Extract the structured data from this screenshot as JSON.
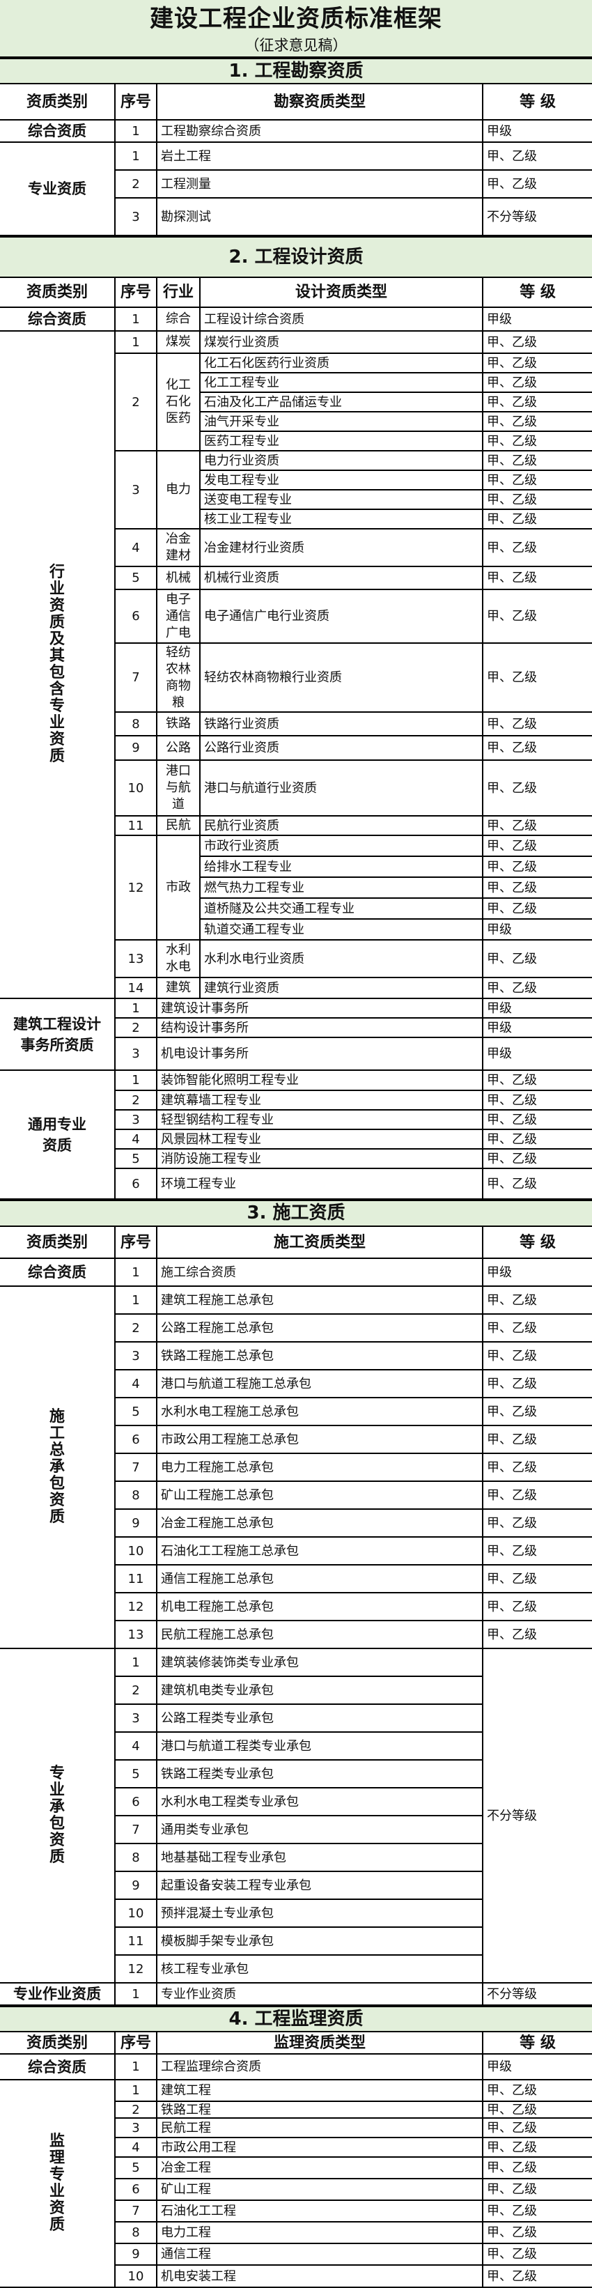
{
  "document": {
    "title": "建设工程企业资质标准框架",
    "subtitle": "（征求意见稿）"
  },
  "colors": {
    "header_bg": "#e2efda",
    "border": "#000000"
  },
  "sections": [
    {
      "title": "1. 工程勘察资质",
      "headers": [
        "资质类别",
        "序号",
        "勘察资质类型",
        "等 级"
      ],
      "groups": [
        {
          "category": "综合资质",
          "entries": [
            {
              "no": "1",
              "items": [
                {
                  "type": "工程勘察综合资质",
                  "grade": "甲级"
                }
              ]
            }
          ]
        },
        {
          "category": "专业资质",
          "entries": [
            {
              "no": "1",
              "items": [
                {
                  "type": "岩土工程",
                  "grade": "甲、乙级"
                }
              ]
            },
            {
              "no": "2",
              "items": [
                {
                  "type": "工程测量",
                  "grade": "甲、乙级"
                }
              ]
            },
            {
              "no": "3",
              "items": [
                {
                  "type": "勘探测试",
                  "grade": "不分等级"
                }
              ]
            }
          ]
        }
      ]
    },
    {
      "title": "2. 工程设计资质",
      "headers": [
        "资质类别",
        "序号",
        "行业",
        "设计资质类型",
        "等 级"
      ],
      "groups": [
        {
          "category": "综合资质",
          "entries": [
            {
              "no": "1",
              "industry": "综合",
              "items": [
                {
                  "type": "工程设计综合资质",
                  "grade": "甲级"
                }
              ]
            }
          ]
        },
        {
          "category": "行业资质及其包含专业资质",
          "vertical": true,
          "entries": [
            {
              "no": "1",
              "industry": "煤炭",
              "items": [
                {
                  "type": "煤炭行业资质",
                  "grade": "甲、乙级"
                }
              ]
            },
            {
              "no": "2",
              "industry": "化工石化医药",
              "items": [
                {
                  "type": "化工石化医药行业资质",
                  "grade": "甲、乙级"
                },
                {
                  "type": "化工工程专业",
                  "grade": "甲、乙级"
                },
                {
                  "type": "石油及化工产品储运专业",
                  "grade": "甲、乙级"
                },
                {
                  "type": "油气开采专业",
                  "grade": "甲、乙级"
                },
                {
                  "type": "医药工程专业",
                  "grade": "甲、乙级"
                }
              ]
            },
            {
              "no": "3",
              "industry": "电力",
              "items": [
                {
                  "type": "电力行业资质",
                  "grade": "甲、乙级"
                },
                {
                  "type": "发电工程专业",
                  "grade": "甲、乙级"
                },
                {
                  "type": "送变电工程专业",
                  "grade": "甲、乙级"
                },
                {
                  "type": "核工业工程专业",
                  "grade": "甲、乙级"
                }
              ]
            },
            {
              "no": "4",
              "industry": "冶金建材",
              "items": [
                {
                  "type": "冶金建材行业资质",
                  "grade": "甲、乙级"
                }
              ]
            },
            {
              "no": "5",
              "industry": "机械",
              "items": [
                {
                  "type": "机械行业资质",
                  "grade": "甲、乙级"
                }
              ]
            },
            {
              "no": "6",
              "industry": "电子通信广电",
              "items": [
                {
                  "type": "电子通信广电行业资质",
                  "grade": "甲、乙级"
                }
              ]
            },
            {
              "no": "7",
              "industry": "轻纺农林商物粮",
              "items": [
                {
                  "type": "轻纺农林商物粮行业资质",
                  "grade": "甲、乙级"
                }
              ]
            },
            {
              "no": "8",
              "industry": "铁路",
              "items": [
                {
                  "type": "铁路行业资质",
                  "grade": "甲、乙级"
                }
              ]
            },
            {
              "no": "9",
              "industry": "公路",
              "items": [
                {
                  "type": "公路行业资质",
                  "grade": "甲、乙级"
                }
              ]
            },
            {
              "no": "10",
              "industry": "港口与航道",
              "items": [
                {
                  "type": "港口与航道行业资质",
                  "grade": "甲、乙级"
                }
              ]
            },
            {
              "no": "11",
              "industry": "民航",
              "items": [
                {
                  "type": "民航行业资质",
                  "grade": "甲、乙级"
                }
              ]
            },
            {
              "no": "12",
              "industry": "市政",
              "items": [
                {
                  "type": "市政行业资质",
                  "grade": "甲、乙级"
                },
                {
                  "type": "给排水工程专业",
                  "grade": "甲、乙级"
                },
                {
                  "type": "燃气热力工程专业",
                  "grade": "甲、乙级"
                },
                {
                  "type": "道桥隧及公共交通工程专业",
                  "grade": "甲、乙级"
                },
                {
                  "type": "轨道交通工程专业",
                  "grade": "甲级"
                }
              ]
            },
            {
              "no": "13",
              "industry": "水利水电",
              "items": [
                {
                  "type": "水利水电行业资质",
                  "grade": "甲、乙级"
                }
              ]
            },
            {
              "no": "14",
              "industry": "建筑",
              "items": [
                {
                  "type": "建筑行业资质",
                  "grade": "甲、乙级"
                }
              ]
            }
          ]
        },
        {
          "category": "建筑工程设计事务所资质",
          "wide_type": true,
          "entries": [
            {
              "no": "1",
              "items": [
                {
                  "type": "建筑设计事务所",
                  "grade": "甲级"
                }
              ]
            },
            {
              "no": "2",
              "items": [
                {
                  "type": "结构设计事务所",
                  "grade": "甲级"
                }
              ]
            },
            {
              "no": "3",
              "items": [
                {
                  "type": "机电设计事务所",
                  "grade": "甲级"
                }
              ]
            }
          ]
        },
        {
          "category": "通用专业资质",
          "narrow": true,
          "wide_type": true,
          "entries": [
            {
              "no": "1",
              "items": [
                {
                  "type": "装饰智能化照明工程专业",
                  "grade": "甲、乙级"
                }
              ]
            },
            {
              "no": "2",
              "items": [
                {
                  "type": "建筑幕墙工程专业",
                  "grade": "甲、乙级"
                }
              ]
            },
            {
              "no": "3",
              "items": [
                {
                  "type": "轻型钢结构工程专业",
                  "grade": "甲、乙级"
                }
              ]
            },
            {
              "no": "4",
              "items": [
                {
                  "type": "风景园林工程专业",
                  "grade": "甲、乙级"
                }
              ]
            },
            {
              "no": "5",
              "items": [
                {
                  "type": "消防设施工程专业",
                  "grade": "甲、乙级"
                }
              ]
            },
            {
              "no": "6",
              "items": [
                {
                  "type": "环境工程专业",
                  "grade": "甲、乙级"
                }
              ]
            }
          ]
        }
      ]
    },
    {
      "title": "3. 施工资质",
      "headers": [
        "资质类别",
        "序号",
        "施工资质类型",
        "等 级"
      ],
      "groups": [
        {
          "category": "综合资质",
          "entries": [
            {
              "no": "1",
              "items": [
                {
                  "type": "施工综合资质",
                  "grade": "甲级"
                }
              ]
            }
          ]
        },
        {
          "category": "施工总承包资质",
          "vertical": true,
          "entries": [
            {
              "no": "1",
              "items": [
                {
                  "type": "建筑工程施工总承包",
                  "grade": "甲、乙级"
                }
              ]
            },
            {
              "no": "2",
              "items": [
                {
                  "type": "公路工程施工总承包",
                  "grade": "甲、乙级"
                }
              ]
            },
            {
              "no": "3",
              "items": [
                {
                  "type": "铁路工程施工总承包",
                  "grade": "甲、乙级"
                }
              ]
            },
            {
              "no": "4",
              "items": [
                {
                  "type": "港口与航道工程施工总承包",
                  "grade": "甲、乙级"
                }
              ]
            },
            {
              "no": "5",
              "items": [
                {
                  "type": "水利水电工程施工总承包",
                  "grade": "甲、乙级"
                }
              ]
            },
            {
              "no": "6",
              "items": [
                {
                  "type": "市政公用工程施工总承包",
                  "grade": "甲、乙级"
                }
              ]
            },
            {
              "no": "7",
              "items": [
                {
                  "type": "电力工程施工总承包",
                  "grade": "甲、乙级"
                }
              ]
            },
            {
              "no": "8",
              "items": [
                {
                  "type": "矿山工程施工总承包",
                  "grade": "甲、乙级"
                }
              ]
            },
            {
              "no": "9",
              "items": [
                {
                  "type": "冶金工程施工总承包",
                  "grade": "甲、乙级"
                }
              ]
            },
            {
              "no": "10",
              "items": [
                {
                  "type": "石油化工工程施工总承包",
                  "grade": "甲、乙级"
                }
              ]
            },
            {
              "no": "11",
              "items": [
                {
                  "type": "通信工程施工总承包",
                  "grade": "甲、乙级"
                }
              ]
            },
            {
              "no": "12",
              "items": [
                {
                  "type": "机电工程施工总承包",
                  "grade": "甲、乙级"
                }
              ]
            },
            {
              "no": "13",
              "items": [
                {
                  "type": "民航工程施工总承包",
                  "grade": "甲、乙级"
                }
              ]
            }
          ]
        },
        {
          "category": "专业承包资质",
          "vertical": true,
          "merged_grade": "不分等级",
          "entries": [
            {
              "no": "1",
              "items": [
                {
                  "type": "建筑装修装饰类专业承包"
                }
              ]
            },
            {
              "no": "2",
              "items": [
                {
                  "type": "建筑机电类专业承包"
                }
              ]
            },
            {
              "no": "3",
              "items": [
                {
                  "type": "公路工程类专业承包"
                }
              ]
            },
            {
              "no": "4",
              "items": [
                {
                  "type": "港口与航道工程类专业承包"
                }
              ]
            },
            {
              "no": "5",
              "items": [
                {
                  "type": "铁路工程类专业承包"
                }
              ]
            },
            {
              "no": "6",
              "items": [
                {
                  "type": "水利水电工程类专业承包"
                }
              ]
            },
            {
              "no": "7",
              "items": [
                {
                  "type": "通用类专业承包"
                }
              ]
            },
            {
              "no": "8",
              "items": [
                {
                  "type": "地基基础工程专业承包"
                }
              ]
            },
            {
              "no": "9",
              "items": [
                {
                  "type": "起重设备安装工程专业承包"
                }
              ]
            },
            {
              "no": "10",
              "items": [
                {
                  "type": "预拌混凝土专业承包"
                }
              ]
            },
            {
              "no": "11",
              "items": [
                {
                  "type": "模板脚手架专业承包"
                }
              ]
            },
            {
              "no": "12",
              "items": [
                {
                  "type": "核工程专业承包"
                }
              ]
            }
          ]
        },
        {
          "category": "专业作业资质",
          "entries": [
            {
              "no": "1",
              "items": [
                {
                  "type": "专业作业资质",
                  "grade": "不分等级"
                }
              ]
            }
          ]
        }
      ]
    },
    {
      "title": "4. 工程监理资质",
      "headers": [
        "资质类别",
        "序号",
        "监理资质类型",
        "等 级"
      ],
      "groups": [
        {
          "category": "综合资质",
          "entries": [
            {
              "no": "1",
              "items": [
                {
                  "type": "工程监理综合资质",
                  "grade": "甲级"
                }
              ]
            }
          ]
        },
        {
          "category": "监理专业资质",
          "vertical": true,
          "entries": [
            {
              "no": "1",
              "items": [
                {
                  "type": "建筑工程",
                  "grade": "甲、乙级"
                }
              ]
            },
            {
              "no": "2",
              "items": [
                {
                  "type": "铁路工程",
                  "grade": "甲、乙级"
                }
              ]
            },
            {
              "no": "3",
              "items": [
                {
                  "type": "民航工程",
                  "grade": "甲、乙级"
                }
              ]
            },
            {
              "no": "4",
              "items": [
                {
                  "type": "市政公用工程",
                  "grade": "甲、乙级"
                }
              ]
            },
            {
              "no": "5",
              "items": [
                {
                  "type": "冶金工程",
                  "grade": "甲、乙级"
                }
              ]
            },
            {
              "no": "6",
              "items": [
                {
                  "type": "矿山工程",
                  "grade": "甲、乙级"
                }
              ]
            },
            {
              "no": "7",
              "items": [
                {
                  "type": "石油化工工程",
                  "grade": "甲、乙级"
                }
              ]
            },
            {
              "no": "8",
              "items": [
                {
                  "type": "电力工程",
                  "grade": "甲、乙级"
                }
              ]
            },
            {
              "no": "9",
              "items": [
                {
                  "type": "通信工程",
                  "grade": "甲、乙级"
                }
              ]
            },
            {
              "no": "10",
              "items": [
                {
                  "type": "机电安装工程",
                  "grade": "甲、乙级"
                }
              ]
            }
          ]
        }
      ]
    }
  ]
}
